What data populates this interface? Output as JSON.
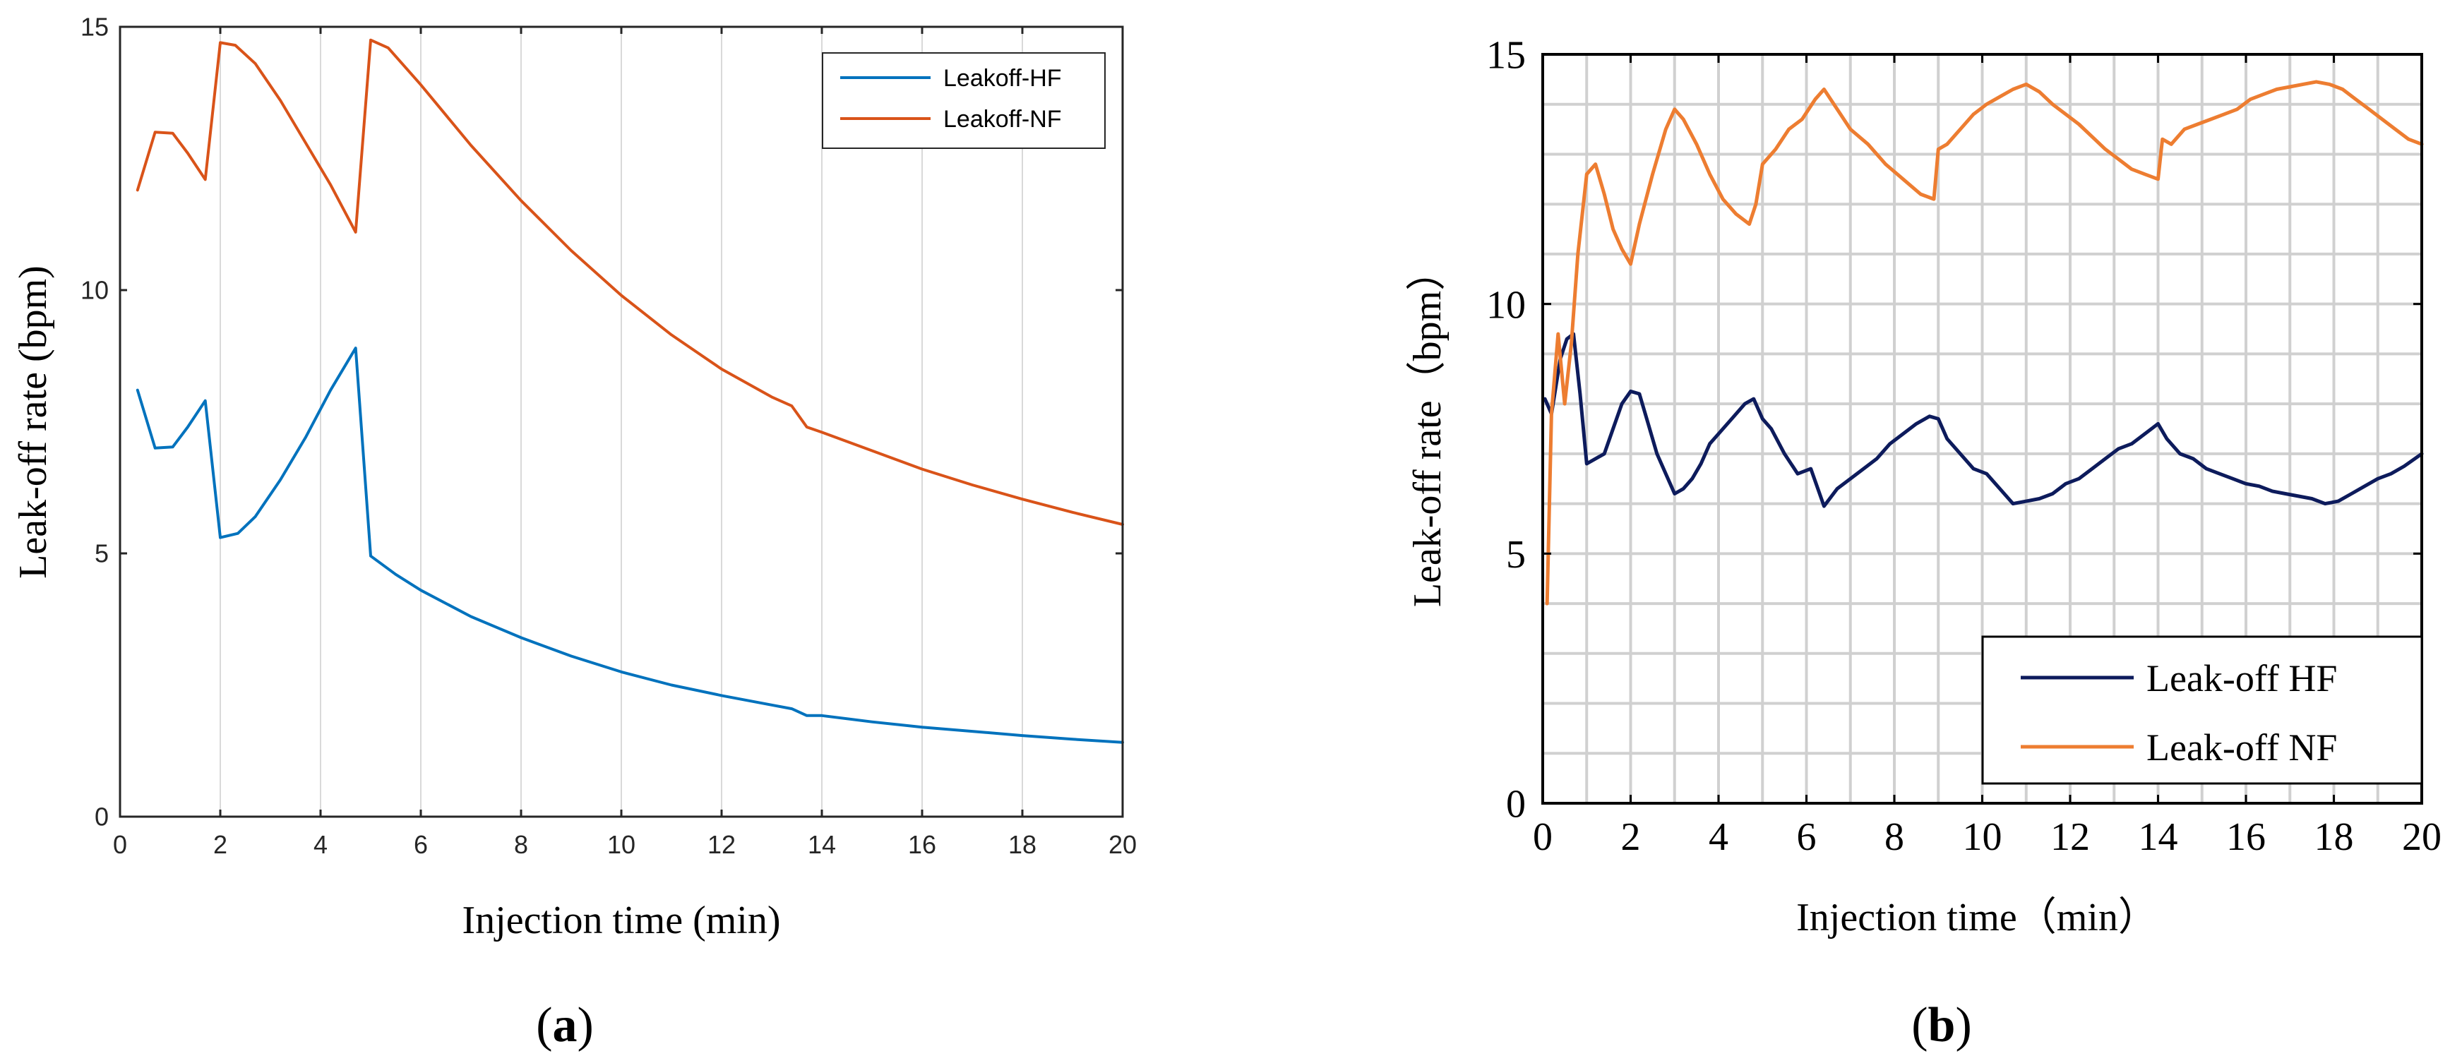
{
  "chart_data": [
    {
      "type": "line",
      "panel_label": "a",
      "xlabel": "Injection time (min)",
      "ylabel": "Leak-off rate (bpm)",
      "xlim": [
        0,
        20
      ],
      "ylim": [
        0,
        15
      ],
      "xticks": [
        0,
        2,
        4,
        6,
        8,
        10,
        12,
        14,
        16,
        18,
        20
      ],
      "yticks": [
        0,
        5,
        10,
        15
      ],
      "grid": "vertical",
      "legend_position": "top-right",
      "series": [
        {
          "name": "Leakoff-HF",
          "color": "#0072bd",
          "x": [
            0.35,
            0.7,
            1.05,
            1.35,
            1.7,
            2.0,
            2.35,
            2.7,
            3.2,
            3.7,
            4.2,
            4.7,
            5.0,
            5.5,
            6.0,
            7.0,
            8.0,
            9.0,
            10.0,
            11.0,
            12.0,
            13.0,
            13.4,
            13.7,
            14.0,
            15.0,
            16.0,
            17.0,
            18.0,
            19.0,
            20.0
          ],
          "y": [
            8.1,
            7.0,
            7.02,
            7.4,
            7.9,
            5.3,
            5.38,
            5.7,
            6.4,
            7.2,
            8.1,
            8.9,
            4.95,
            4.6,
            4.3,
            3.8,
            3.4,
            3.05,
            2.75,
            2.5,
            2.3,
            2.12,
            2.05,
            1.92,
            1.92,
            1.8,
            1.7,
            1.62,
            1.54,
            1.47,
            1.41
          ]
        },
        {
          "name": "Leakoff-NF",
          "color": "#d95319",
          "x": [
            0.35,
            0.7,
            1.05,
            1.35,
            1.7,
            2.0,
            2.3,
            2.7,
            3.2,
            3.7,
            4.2,
            4.7,
            5.0,
            5.35,
            6.0,
            7.0,
            8.0,
            9.0,
            10.0,
            11.0,
            12.0,
            13.0,
            13.4,
            13.7,
            14.0,
            15.0,
            16.0,
            17.0,
            18.0,
            19.0,
            20.0
          ],
          "y": [
            11.9,
            13.0,
            12.98,
            12.6,
            12.1,
            14.7,
            14.65,
            14.3,
            13.6,
            12.8,
            12.0,
            11.1,
            14.75,
            14.6,
            13.9,
            12.75,
            11.7,
            10.75,
            9.9,
            9.15,
            8.5,
            7.97,
            7.8,
            7.4,
            7.3,
            6.95,
            6.6,
            6.3,
            6.03,
            5.78,
            5.55
          ]
        }
      ]
    },
    {
      "type": "line",
      "panel_label": "b",
      "xlabel": "Injection time（min）",
      "ylabel": "Leak-off rate（bpm）",
      "xlim": [
        0,
        20
      ],
      "ylim": [
        0,
        15
      ],
      "xticks": [
        0,
        2,
        4,
        6,
        8,
        10,
        12,
        14,
        16,
        18,
        20
      ],
      "yticks": [
        0,
        5,
        10,
        15
      ],
      "grid": "both",
      "legend_position": "bottom-right",
      "series": [
        {
          "name": "Leak-off HF",
          "color": "#0d1b5c",
          "x": [
            0.05,
            0.2,
            0.4,
            0.55,
            0.7,
            0.85,
            1.0,
            1.2,
            1.4,
            1.6,
            1.8,
            2.0,
            2.2,
            2.4,
            2.6,
            2.8,
            3.0,
            3.2,
            3.4,
            3.6,
            3.8,
            4.0,
            4.3,
            4.6,
            4.8,
            5.0,
            5.2,
            5.5,
            5.8,
            6.1,
            6.4,
            6.7,
            7.0,
            7.3,
            7.6,
            7.9,
            8.2,
            8.5,
            8.8,
            9.0,
            9.2,
            9.5,
            9.8,
            10.1,
            10.4,
            10.7,
            11.0,
            11.3,
            11.6,
            11.9,
            12.2,
            12.5,
            12.8,
            13.1,
            13.4,
            13.7,
            14.0,
            14.2,
            14.5,
            14.8,
            15.1,
            15.4,
            15.7,
            16.0,
            16.3,
            16.6,
            16.9,
            17.2,
            17.5,
            17.8,
            18.1,
            18.4,
            18.7,
            19.0,
            19.3,
            19.6,
            20.0
          ],
          "y": [
            8.1,
            7.8,
            8.9,
            9.3,
            9.4,
            8.2,
            6.8,
            6.9,
            7.0,
            7.5,
            8.0,
            8.25,
            8.2,
            7.6,
            7.0,
            6.6,
            6.2,
            6.3,
            6.5,
            6.8,
            7.2,
            7.4,
            7.7,
            8.0,
            8.1,
            7.7,
            7.5,
            7.0,
            6.6,
            6.7,
            5.95,
            6.3,
            6.5,
            6.7,
            6.9,
            7.2,
            7.4,
            7.6,
            7.75,
            7.7,
            7.3,
            7.0,
            6.7,
            6.6,
            6.3,
            6.0,
            6.05,
            6.1,
            6.2,
            6.4,
            6.5,
            6.7,
            6.9,
            7.1,
            7.2,
            7.4,
            7.6,
            7.3,
            7.0,
            6.9,
            6.7,
            6.6,
            6.5,
            6.4,
            6.35,
            6.25,
            6.2,
            6.15,
            6.1,
            6.0,
            6.05,
            6.2,
            6.35,
            6.5,
            6.6,
            6.75,
            7.0
          ]
        },
        {
          "name": "Leak-off NF",
          "color": "#ed7d31",
          "x": [
            0.1,
            0.2,
            0.35,
            0.5,
            0.65,
            0.8,
            1.0,
            1.2,
            1.4,
            1.6,
            1.8,
            2.0,
            2.2,
            2.5,
            2.8,
            3.0,
            3.2,
            3.5,
            3.8,
            4.1,
            4.4,
            4.7,
            4.85,
            5.0,
            5.3,
            5.6,
            5.9,
            6.2,
            6.4,
            6.7,
            7.0,
            7.4,
            7.8,
            8.2,
            8.6,
            8.9,
            9.0,
            9.2,
            9.5,
            9.8,
            10.1,
            10.4,
            10.7,
            11.0,
            11.3,
            11.6,
            11.9,
            12.2,
            12.5,
            12.8,
            13.1,
            13.4,
            13.7,
            14.0,
            14.1,
            14.3,
            14.6,
            14.9,
            15.2,
            15.5,
            15.8,
            16.1,
            16.4,
            16.7,
            17.0,
            17.3,
            17.6,
            17.9,
            18.2,
            18.5,
            18.8,
            19.1,
            19.4,
            19.7,
            20.0
          ],
          "y": [
            4.0,
            7.8,
            9.4,
            8.0,
            9.2,
            11.0,
            12.6,
            12.8,
            12.2,
            11.5,
            11.1,
            10.8,
            11.6,
            12.6,
            13.5,
            13.9,
            13.7,
            13.2,
            12.6,
            12.1,
            11.8,
            11.6,
            12.0,
            12.8,
            13.1,
            13.5,
            13.7,
            14.1,
            14.3,
            13.9,
            13.5,
            13.2,
            12.8,
            12.5,
            12.2,
            12.1,
            13.1,
            13.2,
            13.5,
            13.8,
            14.0,
            14.15,
            14.3,
            14.4,
            14.25,
            14.0,
            13.8,
            13.6,
            13.35,
            13.1,
            12.9,
            12.7,
            12.6,
            12.5,
            13.3,
            13.2,
            13.5,
            13.6,
            13.7,
            13.8,
            13.9,
            14.1,
            14.2,
            14.3,
            14.35,
            14.4,
            14.45,
            14.4,
            14.3,
            14.1,
            13.9,
            13.7,
            13.5,
            13.3,
            13.2
          ]
        }
      ]
    }
  ]
}
